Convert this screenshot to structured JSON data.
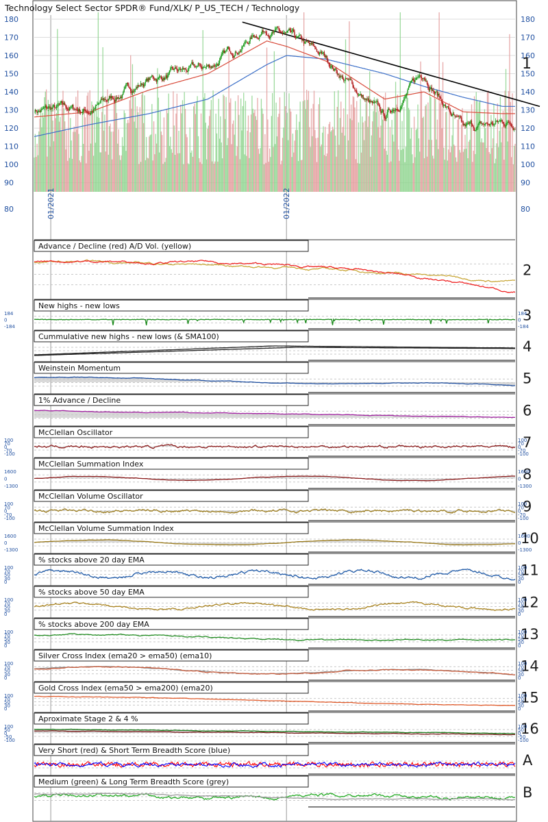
{
  "chart_data": {
    "type": "line",
    "title": "Technology Select Sector SPDR® Fund/XLK/ P_US_TECH / Technology",
    "date_labels": [
      "01/2021",
      "01/2022"
    ],
    "price_axis": {
      "left_ticks": [
        180,
        170,
        160,
        150,
        140,
        130,
        120,
        110,
        100,
        90,
        80
      ],
      "right_ticks": [
        180,
        170,
        160,
        150,
        140,
        130,
        120,
        110,
        100,
        90,
        80
      ]
    },
    "price_series": {
      "x": [
        "2020-12",
        "2021-03",
        "2021-06",
        "2021-09",
        "2021-12",
        "2022-01",
        "2022-03",
        "2022-06",
        "2022-08",
        "2022-10",
        "2022-12"
      ],
      "close": [
        130,
        130,
        147,
        153,
        176,
        170,
        158,
        125,
        151,
        118,
        123
      ],
      "sma50": [
        126,
        129,
        141,
        150,
        168,
        165,
        157,
        136,
        140,
        129,
        128
      ],
      "sma200": [
        115,
        122,
        128,
        136,
        155,
        160,
        158,
        150,
        143,
        137,
        132
      ]
    },
    "trendline": {
      "from": [
        2021.9,
        178
      ],
      "to": [
        2022.95,
        135
      ]
    },
    "panels": [
      {
        "id": "2",
        "title": "Advance / Decline (red) A/D Vol. (yellow)",
        "ticks": []
      },
      {
        "id": "3",
        "title": "New highs - new lows",
        "ticks": [
          "184",
          "0",
          "-184"
        ]
      },
      {
        "id": "4",
        "title": "Cummulative new highs - new lows (& SMA100)",
        "ticks": []
      },
      {
        "id": "5",
        "title": "Weinstein Momentum",
        "ticks": []
      },
      {
        "id": "6",
        "title": "1% Advance / Decline",
        "ticks": []
      },
      {
        "id": "7",
        "title": "McClellan Oscillator",
        "ticks": [
          "100",
          "70",
          "0",
          "-70",
          "-100"
        ]
      },
      {
        "id": "8",
        "title": "McClellan Summation Index",
        "ticks": [
          "1600",
          "0",
          "-1300"
        ]
      },
      {
        "id": "9",
        "title": "McClellan Volume Oscillator",
        "ticks": [
          "100",
          "70",
          "0",
          "-70",
          "-100"
        ]
      },
      {
        "id": "10",
        "title": "McClellan Volume Summation Index",
        "ticks": [
          "1600",
          "0",
          "-1300"
        ]
      },
      {
        "id": "11",
        "title": "% stocks above 20 day EMA",
        "ticks": [
          "100",
          "70",
          "50",
          "30",
          "0"
        ]
      },
      {
        "id": "12",
        "title": "% stocks above 50 day EMA",
        "ticks": [
          "100",
          "70",
          "50",
          "30",
          "0"
        ]
      },
      {
        "id": "13",
        "title": "% stocks above 200 day EMA",
        "ticks": [
          "100",
          "70",
          "50",
          "30",
          "0"
        ]
      },
      {
        "id": "14",
        "title": "Silver Cross Index (ema20 > ema50) (ema10)",
        "ticks": [
          "100",
          "70",
          "50",
          "30",
          "0"
        ]
      },
      {
        "id": "15",
        "title": "Gold Cross Index (ema50 > ema200) (ema20)",
        "ticks": [
          "100",
          "70",
          "50",
          "30",
          "0"
        ]
      },
      {
        "id": "16",
        "title": "Aproximate Stage 2 & 4 %",
        "ticks": [
          "100",
          "50",
          "0",
          "-50",
          "-100"
        ]
      },
      {
        "id": "A",
        "title": "Very Short (red) & Short Term Breadth Score (blue)",
        "ticks": []
      },
      {
        "id": "B",
        "title": "Medium (green) & Long Term Breadth Score (grey)",
        "ticks": []
      }
    ],
    "grid": true,
    "colors": {
      "up_candle": "#1a9a1a",
      "down_candle": "#b01818",
      "sma50": "#d84a3a",
      "sma200": "#3a6ec8",
      "trendline": "#000000",
      "vol_up": "#8cd48c",
      "vol_down": "#e39a9a",
      "ad_line": "#ee2222",
      "ad_vol": "#c9a83a",
      "nhnl": "#1a8a1a",
      "cumnhnl": "#222222",
      "momentum": "#1f4fa0",
      "adv1pct": "#a020a0",
      "mcclellan": "#8a1a1a",
      "volosc": "#9a7a1a",
      "ema20": "#1f5aa8",
      "ema50": "#a8821e",
      "ema200": "#1e8a1e",
      "silver": "#c85a3a",
      "silver_ema": "#909090",
      "gold": "#e05a2a",
      "stage2": "#1a7a1a",
      "stage4": "#7a1a1a",
      "bs_red": "#ff0000",
      "bs_blue": "#0000ff",
      "bs_green": "#22aa22",
      "bs_grey": "#999999",
      "fill_grey": "#c8c8c8",
      "panel_label": "#1a1a1a"
    }
  }
}
